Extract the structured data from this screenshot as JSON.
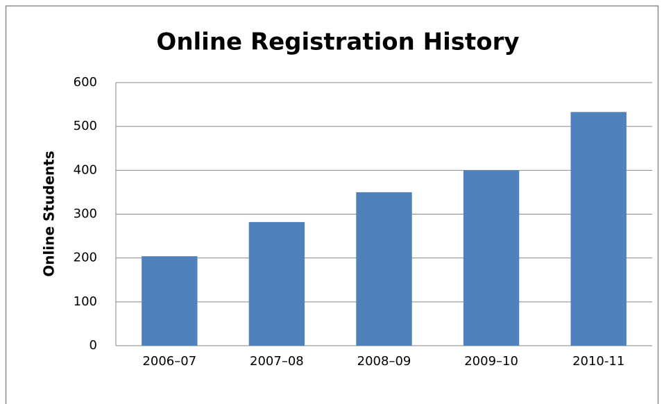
{
  "chart_data": {
    "type": "bar",
    "title": "Online Registration History",
    "y_label": "Online Students",
    "categories": [
      "2006–07",
      "2007–08",
      "2008–09",
      "2009–10",
      "2010-11"
    ],
    "values": [
      204,
      282,
      350,
      400,
      533
    ],
    "color": "#4f81bd",
    "ylim": [
      0,
      600
    ],
    "yticks": [
      0,
      100,
      200,
      300,
      400,
      500,
      600
    ],
    "grid": true
  }
}
